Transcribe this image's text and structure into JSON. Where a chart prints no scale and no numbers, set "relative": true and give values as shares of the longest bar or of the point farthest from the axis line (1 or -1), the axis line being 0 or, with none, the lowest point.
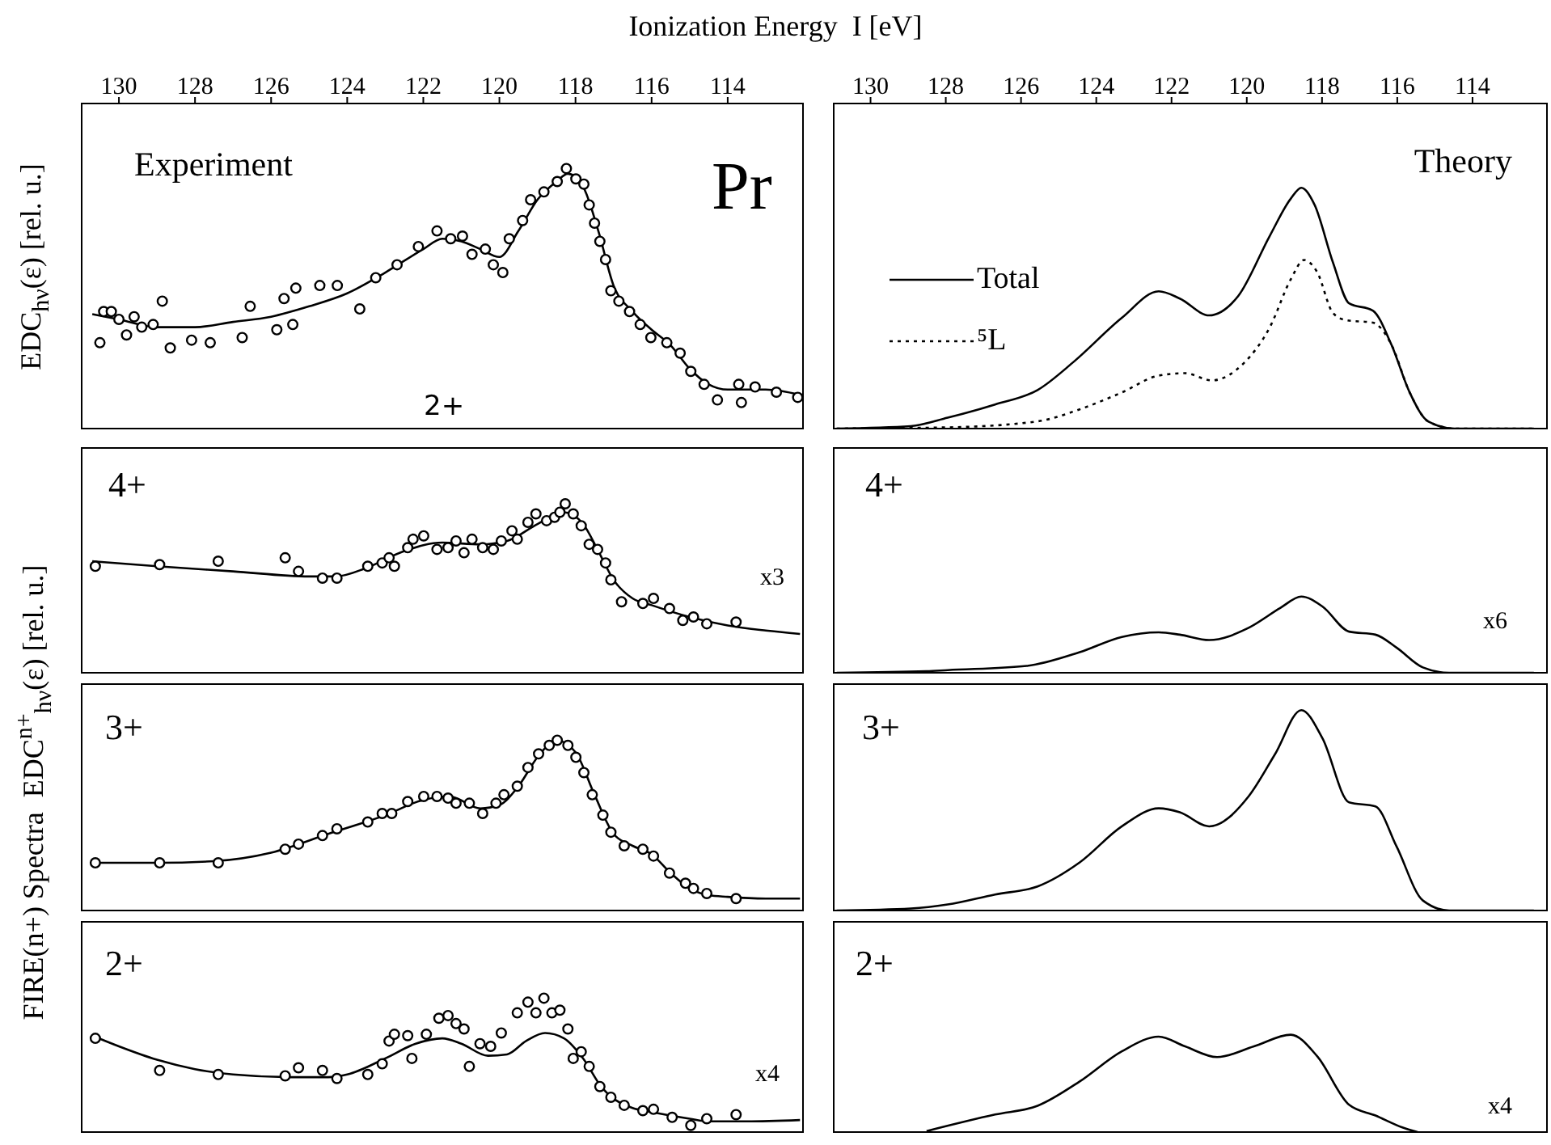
{
  "chart_data": [
    {
      "type": "scatter",
      "xlabel": "Ionization Energy  I [eV]",
      "ylabel": "EDC$_{hν}$(ε) [rel. u.]",
      "annotations": [
        "Experiment",
        "Pr",
        "2+"
      ],
      "relative": true,
      "tick_labels": "x",
      "xlim": [
        131,
        112
      ],
      "xticks": [
        130,
        128,
        126,
        124,
        122,
        120,
        118,
        116,
        114
      ],
      "series": [
        {
          "type": "line",
          "color": "#000000",
          "line_style": "solid",
          "x": [
            130.7,
            130,
            129,
            128,
            127,
            126,
            125,
            124,
            123,
            122,
            121.5,
            121,
            120.5,
            120,
            119.5,
            119,
            118.5,
            118.2,
            117.8,
            117.4,
            117,
            116.5,
            116,
            115.5,
            115,
            114.5,
            114,
            113,
            112.1
          ],
          "values": [
            0.44,
            0.42,
            0.39,
            0.39,
            0.41,
            0.43,
            0.47,
            0.52,
            0.6,
            0.69,
            0.73,
            0.72,
            0.69,
            0.66,
            0.76,
            0.88,
            0.95,
            0.98,
            0.93,
            0.76,
            0.55,
            0.45,
            0.38,
            0.32,
            0.23,
            0.17,
            0.15,
            0.15,
            0.13
          ]
        },
        {
          "marker": "circle",
          "color": "#000000",
          "x": [
            130.5,
            130.4,
            130.2,
            130.0,
            129.8,
            129.6,
            129.4,
            129.1,
            128.86,
            128.65,
            128.09,
            127.6,
            126.76,
            126.55,
            125.85,
            125.66,
            125.43,
            125.35,
            124.72,
            124.26,
            123.67,
            123.25,
            122.69,
            122.13,
            121.64,
            121.28,
            120.97,
            120.72,
            120.37,
            120.16,
            119.91,
            119.74,
            119.39,
            119.18,
            118.83,
            118.48,
            118.24,
            117.99,
            117.78,
            117.64,
            117.5,
            117.36,
            117.21,
            117.07,
            116.86,
            116.58,
            116.3,
            116.02,
            115.6,
            115.25,
            114.97,
            114.62,
            114.27,
            113.71,
            113.64,
            113.28,
            112.72,
            112.16
          ],
          "values": [
            0.33,
            0.45,
            0.45,
            0.42,
            0.36,
            0.43,
            0.39,
            0.4,
            0.49,
            0.31,
            0.34,
            0.33,
            0.35,
            0.47,
            0.38,
            0.5,
            0.4,
            0.54,
            0.55,
            0.55,
            0.46,
            0.58,
            0.63,
            0.7,
            0.76,
            0.73,
            0.74,
            0.67,
            0.69,
            0.63,
            0.6,
            0.73,
            0.8,
            0.88,
            0.91,
            0.95,
            1.0,
            0.96,
            0.94,
            0.86,
            0.79,
            0.72,
            0.65,
            0.53,
            0.49,
            0.45,
            0.4,
            0.35,
            0.33,
            0.29,
            0.22,
            0.17,
            0.11,
            0.17,
            0.1,
            0.16,
            0.14,
            0.12
          ]
        }
      ]
    },
    {
      "type": "line",
      "annotations": [
        "Theory"
      ],
      "relative": true,
      "tick_labels": "x",
      "legend": "left",
      "xlim": [
        131,
        112
      ],
      "xticks": [
        130,
        128,
        126,
        124,
        122,
        120,
        118,
        116,
        114
      ],
      "series": [
        {
          "name": "Total",
          "color": "#000000",
          "line_style": "solid",
          "x": [
            130.9,
            128.93,
            127.95,
            126.69,
            125.56,
            124.58,
            123.32,
            122.34,
            121.78,
            121.0,
            120.23,
            119.39,
            118.83,
            118.55,
            118.2,
            117.71,
            117.28,
            116.65,
            116.16,
            115.67,
            115.18,
            114.48,
            112.37
          ],
          "values": [
            0,
            0.01,
            0.045,
            0.1,
            0.16,
            0.28,
            0.46,
            0.57,
            0.54,
            0.47,
            0.55,
            0.8,
            0.955,
            1.0,
            0.93,
            0.69,
            0.52,
            0.49,
            0.35,
            0.15,
            0.03,
            0,
            0
          ]
        },
        {
          "name": "⁵L",
          "color": "#000000",
          "line_style": "dotted",
          "x": [
            130.9,
            127.95,
            125.56,
            124.44,
            123.32,
            122.34,
            121.64,
            120.93,
            120.09,
            119.39,
            118.83,
            118.48,
            118.13,
            117.71,
            117.36,
            116.65,
            116.16,
            115.67,
            115.18,
            114.48,
            112.37
          ],
          "values": [
            0,
            0.005,
            0.03,
            0.08,
            0.15,
            0.22,
            0.23,
            0.2,
            0.27,
            0.42,
            0.62,
            0.7,
            0.65,
            0.48,
            0.45,
            0.44,
            0.35,
            0.15,
            0.03,
            0,
            0
          ]
        }
      ]
    },
    {
      "type": "scatter",
      "annotations": [
        "4+",
        "x3"
      ],
      "relative": true,
      "tick_labels": false,
      "xlim": [
        131,
        112
      ],
      "xticks": [
        130,
        128,
        126,
        124,
        122,
        120,
        118,
        116,
        114
      ],
      "series": [
        {
          "type": "line",
          "color": "#000000",
          "line_style": "solid",
          "x": [
            130.7,
            129,
            127,
            125,
            124.3,
            123.5,
            122.5,
            121.5,
            120.5,
            119.8,
            119,
            118.3,
            117.8,
            117.4,
            117,
            116.5,
            116,
            115,
            114,
            113,
            112.1
          ],
          "values": [
            0.66,
            0.63,
            0.6,
            0.57,
            0.57,
            0.62,
            0.72,
            0.77,
            0.76,
            0.78,
            0.88,
            0.95,
            0.88,
            0.72,
            0.55,
            0.44,
            0.4,
            0.33,
            0.28,
            0.25,
            0.23
          ]
        },
        {
          "marker": "circle",
          "color": "#000000",
          "x": [
            130.62,
            128.93,
            127.39,
            125.63,
            125.28,
            124.65,
            124.27,
            123.46,
            123.08,
            122.9,
            122.76,
            122.41,
            122.27,
            121.99,
            121.64,
            121.35,
            121.14,
            120.93,
            120.72,
            120.44,
            120.16,
            119.95,
            119.67,
            119.53,
            119.25,
            119.04,
            118.76,
            118.55,
            118.41,
            118.27,
            118.06,
            117.85,
            117.64,
            117.42,
            117.21,
            117.07,
            116.79,
            116.23,
            115.95,
            115.53,
            115.18,
            114.9,
            114.55,
            113.78
          ],
          "values": [
            0.63,
            0.64,
            0.66,
            0.68,
            0.6,
            0.56,
            0.56,
            0.63,
            0.65,
            0.68,
            0.63,
            0.74,
            0.79,
            0.81,
            0.73,
            0.74,
            0.78,
            0.71,
            0.79,
            0.74,
            0.73,
            0.78,
            0.84,
            0.79,
            0.89,
            0.94,
            0.9,
            0.92,
            0.95,
            1.0,
            0.94,
            0.87,
            0.76,
            0.73,
            0.65,
            0.55,
            0.42,
            0.41,
            0.44,
            0.38,
            0.31,
            0.33,
            0.29,
            0.3
          ]
        }
      ]
    },
    {
      "type": "line",
      "annotations": [
        "4+",
        "x6"
      ],
      "relative": true,
      "tick_labels": false,
      "xlim": [
        131,
        112
      ],
      "xticks": [
        130,
        128,
        126,
        124,
        122,
        120,
        118,
        116,
        114
      ],
      "series": [
        {
          "color": "#000000",
          "line_style": "solid",
          "x": [
            130.9,
            128.51,
            127.95,
            125.85,
            124.44,
            123.32,
            122.34,
            121.78,
            121.0,
            119.95,
            119.11,
            118.55,
            117.99,
            117.28,
            116.58,
            116.02,
            115.32,
            114.62,
            112.37
          ],
          "values": [
            0,
            0.02,
            0.035,
            0.09,
            0.27,
            0.47,
            0.53,
            0.5,
            0.43,
            0.59,
            0.85,
            1.0,
            0.87,
            0.54,
            0.5,
            0.33,
            0.07,
            0,
            0
          ]
        }
      ]
    },
    {
      "type": "scatter",
      "ylabel": "FIRE(n+) Spectra  EDC$^{n+}$$_{hν}$(ε) [rel. u.]",
      "annotations": [
        "3+"
      ],
      "relative": true,
      "tick_labels": false,
      "xlim": [
        131,
        112
      ],
      "xticks": [
        130,
        128,
        126,
        124,
        122,
        120,
        118,
        116,
        114
      ],
      "series": [
        {
          "type": "line",
          "color": "#000000",
          "line_style": "solid",
          "x": [
            130.7,
            129,
            127.5,
            126,
            124.5,
            123,
            122,
            121.3,
            120.5,
            120,
            119.5,
            119,
            118.5,
            118,
            117.5,
            117,
            116.5,
            116,
            115.5,
            115,
            114.5,
            114,
            113,
            112.1
          ],
          "values": [
            0.28,
            0.28,
            0.29,
            0.34,
            0.45,
            0.56,
            0.65,
            0.67,
            0.6,
            0.62,
            0.73,
            0.9,
            1.0,
            0.93,
            0.68,
            0.45,
            0.38,
            0.33,
            0.22,
            0.13,
            0.09,
            0.08,
            0.07,
            0.07
          ]
        },
        {
          "marker": "circle",
          "color": "#000000",
          "x": [
            130.62,
            128.93,
            127.39,
            125.63,
            125.28,
            124.65,
            124.27,
            123.46,
            123.08,
            122.83,
            122.41,
            121.99,
            121.64,
            121.35,
            121.14,
            120.79,
            120.44,
            120.09,
            119.88,
            119.53,
            119.25,
            118.97,
            118.69,
            118.48,
            118.2,
            117.99,
            117.78,
            117.56,
            117.28,
            117.07,
            116.72,
            116.23,
            115.95,
            115.53,
            115.11,
            114.9,
            114.55,
            113.78
          ],
          "values": [
            0.28,
            0.28,
            0.28,
            0.36,
            0.39,
            0.44,
            0.48,
            0.52,
            0.57,
            0.57,
            0.64,
            0.67,
            0.67,
            0.66,
            0.63,
            0.63,
            0.57,
            0.63,
            0.68,
            0.73,
            0.84,
            0.92,
            0.97,
            1.0,
            0.97,
            0.9,
            0.81,
            0.68,
            0.56,
            0.46,
            0.38,
            0.36,
            0.32,
            0.22,
            0.16,
            0.13,
            0.1,
            0.07
          ]
        }
      ]
    },
    {
      "type": "line",
      "annotations": [
        "3+"
      ],
      "relative": true,
      "tick_labels": false,
      "xlim": [
        131,
        112
      ],
      "xticks": [
        130,
        128,
        126,
        124,
        122,
        120,
        118,
        116,
        114
      ],
      "series": [
        {
          "color": "#000000",
          "line_style": "solid",
          "x": [
            130.9,
            128.93,
            127.95,
            126.69,
            125.56,
            124.44,
            123.32,
            122.34,
            121.78,
            121.0,
            119.95,
            119.25,
            118.55,
            117.99,
            117.28,
            116.58,
            116.02,
            115.32,
            114.62,
            112.37
          ],
          "values": [
            0,
            0.01,
            0.03,
            0.08,
            0.12,
            0.24,
            0.42,
            0.51,
            0.49,
            0.42,
            0.57,
            0.78,
            1.0,
            0.86,
            0.54,
            0.52,
            0.32,
            0.05,
            0,
            0
          ]
        }
      ]
    },
    {
      "type": "scatter",
      "annotations": [
        "2+",
        "x4"
      ],
      "relative": true,
      "tick_labels": false,
      "xlim": [
        131,
        112
      ],
      "xticks": [
        130,
        128,
        126,
        124,
        122,
        120,
        118,
        116,
        114
      ],
      "series": [
        {
          "type": "line",
          "color": "#000000",
          "line_style": "solid",
          "x": [
            130.7,
            130,
            129,
            128,
            127,
            125.5,
            124.5,
            124,
            123,
            122.2,
            121.5,
            121,
            120.3,
            119.8,
            119.3,
            118.8,
            118.3,
            117.8,
            117.3,
            117,
            116.5,
            116,
            115,
            114.5,
            113.5,
            112.1
          ],
          "values": [
            0.72,
            0.64,
            0.54,
            0.47,
            0.43,
            0.41,
            0.41,
            0.43,
            0.55,
            0.66,
            0.7,
            0.66,
            0.57,
            0.58,
            0.68,
            0.74,
            0.7,
            0.55,
            0.33,
            0.25,
            0.18,
            0.15,
            0.1,
            0.08,
            0.08,
            0.09
          ]
        },
        {
          "marker": "circle",
          "color": "#000000",
          "x": [
            130.62,
            128.93,
            127.39,
            125.63,
            125.28,
            124.65,
            124.27,
            123.46,
            123.08,
            122.9,
            122.76,
            122.41,
            122.3,
            121.92,
            121.59,
            121.35,
            121.14,
            120.93,
            120.79,
            120.51,
            120.23,
            119.95,
            119.53,
            119.25,
            119.04,
            118.83,
            118.62,
            118.41,
            118.2,
            118.06,
            117.85,
            117.64,
            117.36,
            117.07,
            116.72,
            116.23,
            115.95,
            115.46,
            114.97,
            114.55,
            113.78
          ],
          "values": [
            0.7,
            0.46,
            0.43,
            0.42,
            0.48,
            0.46,
            0.4,
            0.43,
            0.51,
            0.68,
            0.73,
            0.72,
            0.55,
            0.73,
            0.85,
            0.87,
            0.81,
            0.77,
            0.49,
            0.66,
            0.64,
            0.74,
            0.89,
            0.97,
            0.89,
            1.0,
            0.89,
            0.91,
            0.77,
            0.55,
            0.6,
            0.49,
            0.34,
            0.26,
            0.2,
            0.16,
            0.17,
            0.11,
            0.05,
            0.1,
            0.13
          ]
        }
      ]
    },
    {
      "type": "line",
      "annotations": [
        "2+",
        "x4"
      ],
      "relative": true,
      "tick_labels": false,
      "xlim": [
        131,
        112
      ],
      "xticks": [
        130,
        128,
        126,
        124,
        122,
        120,
        118,
        116,
        114
      ],
      "series": [
        {
          "color": "#000000",
          "line_style": "solid",
          "x": [
            128.51,
            126.69,
            125.56,
            124.44,
            123.32,
            122.34,
            121.64,
            120.79,
            119.81,
            118.83,
            118.13,
            117.28,
            116.58,
            115.88,
            115.46
          ],
          "values": [
            0.01,
            0.18,
            0.27,
            0.52,
            0.83,
            0.98,
            0.88,
            0.77,
            0.88,
            1.0,
            0.78,
            0.28,
            0.17,
            0.05,
            0
          ]
        }
      ]
    }
  ]
}
